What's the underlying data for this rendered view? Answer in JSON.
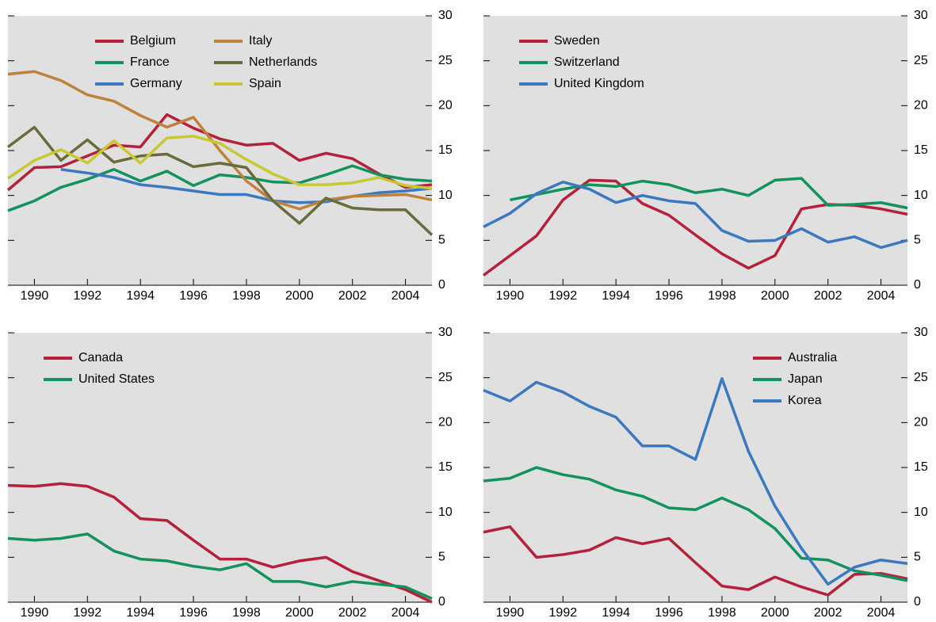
{
  "chart_data": [
    {
      "type": "line",
      "legend": "upper left",
      "background": "#e0e0e0",
      "x": [
        1989,
        1990,
        1991,
        1992,
        1993,
        1994,
        1995,
        1996,
        1997,
        1998,
        1999,
        2000,
        2001,
        2002,
        2003,
        2004,
        2005
      ],
      "xlim": [
        1989,
        2005
      ],
      "xticks": [
        1990,
        1992,
        1994,
        1996,
        1998,
        2000,
        2002,
        2004
      ],
      "ylim": [
        0,
        30
      ],
      "yticks": [
        0,
        5,
        10,
        15,
        20,
        25,
        30
      ],
      "series": [
        {
          "name": "Belgium",
          "color": "#b5203a",
          "values": [
            10.6,
            13.1,
            13.2,
            14.4,
            15.6,
            15.4,
            19.0,
            17.5,
            16.3,
            15.6,
            15.8,
            13.9,
            14.7,
            14.1,
            12.4,
            10.9,
            11.2
          ]
        },
        {
          "name": "France",
          "color": "#12935d",
          "values": [
            8.3,
            9.4,
            10.9,
            11.8,
            12.9,
            11.6,
            12.7,
            11.1,
            12.3,
            12.0,
            11.5,
            11.4,
            12.3,
            13.3,
            12.3,
            11.8,
            11.6
          ]
        },
        {
          "name": "Germany",
          "color": "#3a78c0",
          "values": [
            null,
            null,
            12.9,
            12.5,
            12.0,
            11.2,
            10.9,
            10.5,
            10.1,
            10.1,
            9.4,
            9.2,
            9.3,
            9.9,
            10.3,
            10.5,
            10.8
          ]
        },
        {
          "name": "Italy",
          "color": "#c0823a",
          "values": [
            23.5,
            23.8,
            22.8,
            21.2,
            20.5,
            18.9,
            17.6,
            18.7,
            15.0,
            11.6,
            9.4,
            8.5,
            9.5,
            9.9,
            10.0,
            10.1,
            9.5
          ]
        },
        {
          "name": "Netherlands",
          "color": "#6b6a3a",
          "values": [
            15.4,
            17.6,
            13.9,
            16.2,
            13.7,
            14.4,
            14.6,
            13.2,
            13.6,
            13.1,
            9.4,
            6.9,
            9.7,
            8.6,
            8.4,
            8.4,
            5.6
          ]
        },
        {
          "name": "Spain",
          "color": "#c8c832",
          "values": [
            11.9,
            13.9,
            15.1,
            13.6,
            16.1,
            13.6,
            16.4,
            16.6,
            15.8,
            14.0,
            12.4,
            11.2,
            11.2,
            11.4,
            12.0,
            11.1,
            10.8
          ]
        }
      ]
    },
    {
      "type": "line",
      "legend": "upper left",
      "background": "#e0e0e0",
      "x": [
        1989,
        1990,
        1991,
        1992,
        1993,
        1994,
        1995,
        1996,
        1997,
        1998,
        1999,
        2000,
        2001,
        2002,
        2003,
        2004,
        2005
      ],
      "xlim": [
        1989,
        2005
      ],
      "xticks": [
        1990,
        1992,
        1994,
        1996,
        1998,
        2000,
        2002,
        2004
      ],
      "ylim": [
        0,
        30
      ],
      "yticks": [
        0,
        5,
        10,
        15,
        20,
        25,
        30
      ],
      "series": [
        {
          "name": "Sweden",
          "color": "#b5203a",
          "values": [
            1.1,
            3.3,
            5.5,
            9.5,
            11.7,
            11.6,
            9.1,
            7.8,
            5.6,
            3.5,
            1.9,
            3.3,
            8.5,
            9.0,
            8.9,
            8.5,
            7.9
          ]
        },
        {
          "name": "Switzerland",
          "color": "#12935d",
          "values": [
            null,
            9.5,
            10.1,
            10.7,
            11.2,
            11.0,
            11.6,
            11.2,
            10.3,
            10.7,
            10.0,
            11.7,
            11.9,
            8.9,
            9.0,
            9.2,
            8.6
          ]
        },
        {
          "name": "United Kingdom",
          "color": "#3a78c0",
          "values": [
            6.5,
            8.0,
            10.2,
            11.5,
            10.7,
            9.2,
            10.0,
            9.4,
            9.1,
            6.1,
            4.9,
            5.0,
            6.3,
            4.8,
            5.4,
            4.2,
            5.0
          ]
        }
      ]
    },
    {
      "type": "line",
      "legend": "upper left",
      "background": "#e0e0e0",
      "x": [
        1989,
        1990,
        1991,
        1992,
        1993,
        1994,
        1995,
        1996,
        1997,
        1998,
        1999,
        2000,
        2001,
        2002,
        2003,
        2004,
        2005
      ],
      "xlim": [
        1989,
        2005
      ],
      "xticks": [
        1990,
        1992,
        1994,
        1996,
        1998,
        2000,
        2002,
        2004
      ],
      "ylim": [
        0,
        30
      ],
      "yticks": [
        0,
        5,
        10,
        15,
        20,
        25,
        30
      ],
      "series": [
        {
          "name": "Canada",
          "color": "#b5203a",
          "values": [
            13.0,
            12.9,
            13.2,
            12.9,
            11.7,
            9.3,
            9.1,
            6.9,
            4.8,
            4.8,
            3.9,
            4.6,
            5.0,
            3.4,
            2.4,
            1.4,
            0
          ]
        },
        {
          "name": "United States",
          "color": "#12935d",
          "values": [
            7.1,
            6.9,
            7.1,
            7.6,
            5.7,
            4.8,
            4.6,
            4.0,
            3.6,
            4.3,
            2.3,
            2.3,
            1.7,
            2.3,
            2.0,
            1.7,
            0.4
          ]
        }
      ]
    },
    {
      "type": "line",
      "legend": "upper right",
      "background": "#e0e0e0",
      "x": [
        1989,
        1990,
        1991,
        1992,
        1993,
        1994,
        1995,
        1996,
        1997,
        1998,
        1999,
        2000,
        2001,
        2002,
        2003,
        2004,
        2005
      ],
      "xlim": [
        1989,
        2005
      ],
      "xticks": [
        1990,
        1992,
        1994,
        1996,
        1998,
        2000,
        2002,
        2004
      ],
      "ylim": [
        0,
        30
      ],
      "yticks": [
        0,
        5,
        10,
        15,
        20,
        25,
        30
      ],
      "series": [
        {
          "name": "Australia",
          "color": "#b5203a",
          "values": [
            7.8,
            8.4,
            5.0,
            5.3,
            5.8,
            7.2,
            6.5,
            7.1,
            4.4,
            1.8,
            1.4,
            2.8,
            1.7,
            0.8,
            3.1,
            3.2,
            2.6
          ]
        },
        {
          "name": "Japan",
          "color": "#12935d",
          "values": [
            13.5,
            13.8,
            15.0,
            14.2,
            13.7,
            12.5,
            11.8,
            10.5,
            10.3,
            11.6,
            10.3,
            8.2,
            4.9,
            4.7,
            3.5,
            3.0,
            2.4
          ]
        },
        {
          "name": "Korea",
          "color": "#3a78c0",
          "values": [
            23.6,
            22.4,
            24.5,
            23.4,
            21.8,
            20.6,
            17.4,
            17.4,
            15.9,
            24.9,
            16.8,
            10.7,
            6.0,
            2.0,
            3.9,
            4.7,
            4.3
          ]
        }
      ]
    }
  ]
}
